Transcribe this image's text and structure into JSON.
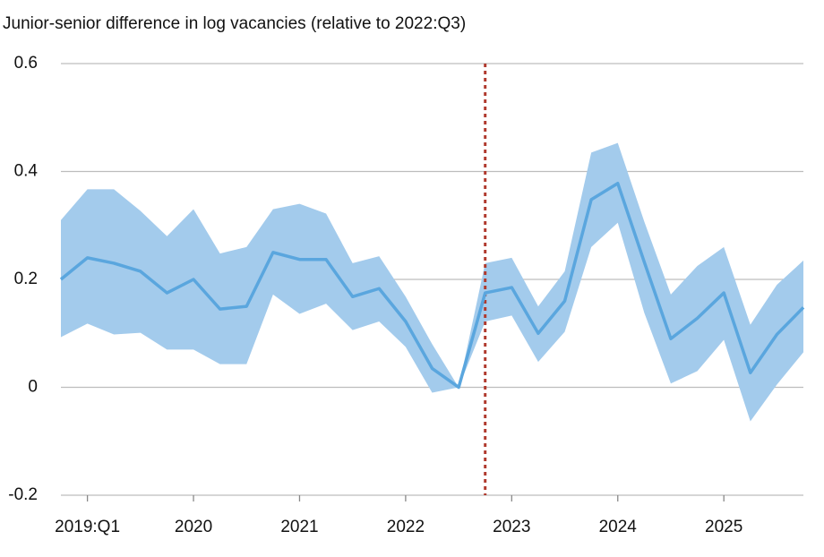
{
  "chart_data": {
    "type": "line-band",
    "title": "Junior-senior difference in log vacancies (relative to 2022:Q3)",
    "x": [
      2018.75,
      2019,
      2019.25,
      2019.5,
      2019.75,
      2020,
      2020.25,
      2020.5,
      2020.75,
      2021,
      2021.25,
      2021.5,
      2021.75,
      2022,
      2022.25,
      2022.5,
      2022.75,
      2023,
      2023.25,
      2023.5,
      2023.75,
      2024,
      2024.25,
      2024.5,
      2024.75,
      2025,
      2025.25,
      2025.5,
      2025.75
    ],
    "values": [
      0.2,
      0.24,
      0.23,
      0.215,
      0.175,
      0.2,
      0.145,
      0.15,
      0.25,
      0.237,
      0.237,
      0.168,
      0.183,
      0.122,
      0.035,
      0,
      0.175,
      0.185,
      0.1,
      0.16,
      0.348,
      0.378,
      0.232,
      0.09,
      0.128,
      0.175,
      0.027,
      0.098,
      0.148
    ],
    "upper": [
      0.31,
      0.367,
      0.367,
      0.327,
      0.28,
      0.33,
      0.248,
      0.26,
      0.33,
      0.34,
      0.322,
      0.23,
      0.243,
      0.168,
      0.08,
      0,
      0.23,
      0.24,
      0.15,
      0.215,
      0.435,
      0.453,
      0.307,
      0.172,
      0.225,
      0.26,
      0.116,
      0.19,
      0.235
    ],
    "lower": [
      0.093,
      0.118,
      0.098,
      0.101,
      0.07,
      0.07,
      0.043,
      0.043,
      0.172,
      0.136,
      0.155,
      0.106,
      0.122,
      0.075,
      -0.01,
      0,
      0.122,
      0.133,
      0.047,
      0.103,
      0.26,
      0.305,
      0.138,
      0.007,
      0.03,
      0.088,
      -0.063,
      0.005,
      0.065
    ],
    "color": "#5aa6de",
    "band_color": "#a3cbec",
    "vline_x": 2022.75,
    "vline_color": "#b03a2e",
    "xlim": [
      2018.75,
      2025.75
    ],
    "xticks": [
      {
        "value": 2019,
        "label": "2019:Q1"
      },
      2020,
      2021,
      2022,
      2023,
      2024,
      2025
    ],
    "ylim": [
      -0.2,
      0.6
    ],
    "yticks": [
      -0.2,
      0,
      0.2,
      0.4,
      0.6
    ],
    "grid": true
  }
}
